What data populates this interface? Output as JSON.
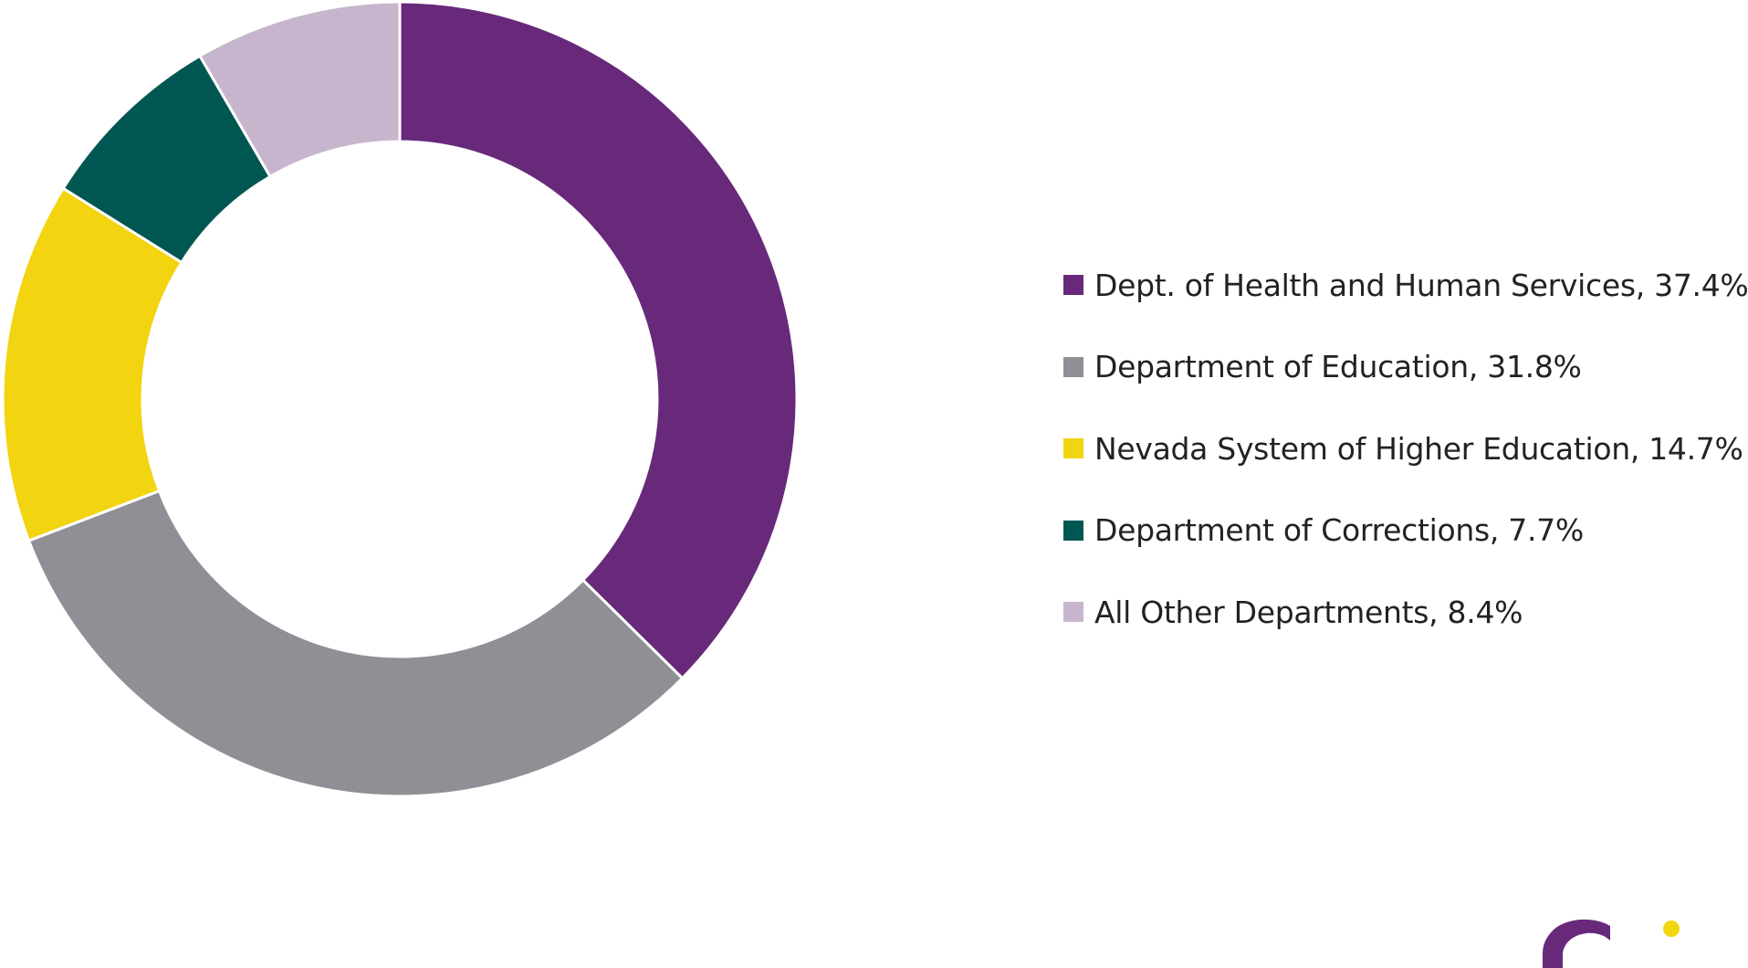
{
  "chart_data": {
    "type": "pie",
    "variant": "donut",
    "categories": [
      "Dept. of Health and Human Services",
      "Department of Education",
      "Nevada System of Higher Education",
      "Department of Corrections",
      "All Other Departments"
    ],
    "values": [
      37.4,
      31.8,
      14.7,
      7.7,
      8.4
    ],
    "colors": [
      "#68297A",
      "#918F96",
      "#F2D410",
      "#005752",
      "#C7B5CD"
    ],
    "legend_position": "right",
    "legend": [
      {
        "label": "Dept. of Health and Human Services, 37.4%",
        "color": "#68297A"
      },
      {
        "label": "Department of Education, 31.8%",
        "color": "#918F96"
      },
      {
        "label": "Nevada System of Higher Education, 14.7%",
        "color": "#F2D410"
      },
      {
        "label": "Department of Corrections, 7.7%",
        "color": "#005752"
      },
      {
        "label": "All Other Departments, 8.4%",
        "color": "#C7B5CD"
      }
    ],
    "title": "",
    "xlabel": "",
    "ylabel": ""
  },
  "logo": {
    "letter_color": "#68297A",
    "dot_color": "#F2D410"
  }
}
